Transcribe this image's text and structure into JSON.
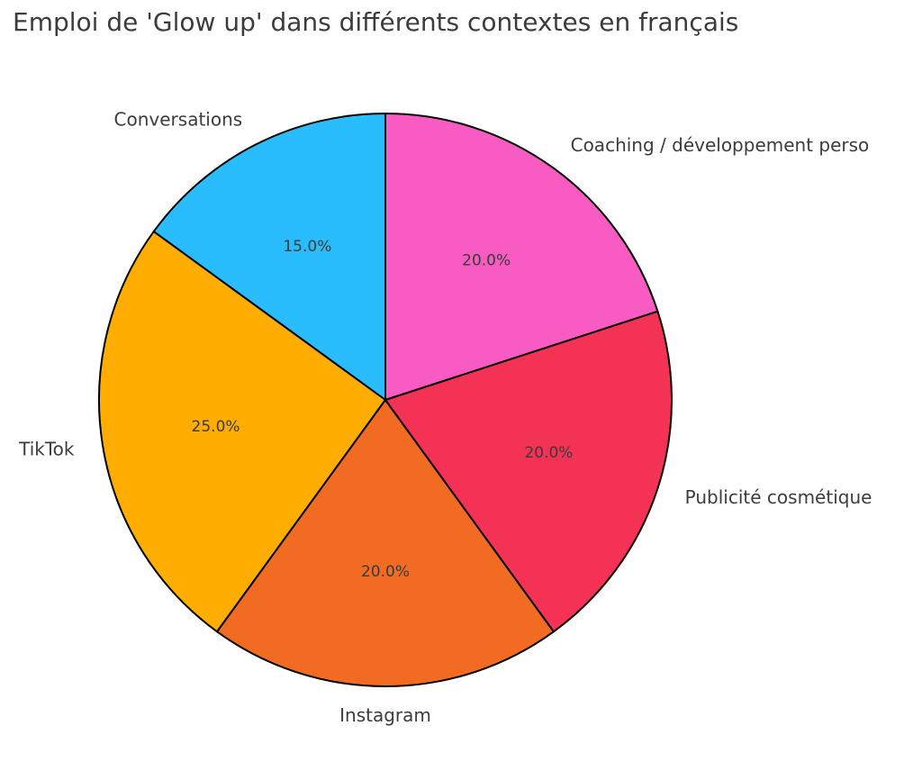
{
  "chart_data": {
    "type": "pie",
    "title": "Emploi de 'Glow up' dans différents contextes en français",
    "categories": [
      "Coaching / développement perso",
      "Conversations",
      "TikTok",
      "Instagram",
      "Publicité cosmétique"
    ],
    "values": [
      20,
      15,
      25,
      20,
      20
    ],
    "value_labels": [
      "20.0%",
      "15.0%",
      "25.0%",
      "20.0%",
      "20.0%"
    ],
    "colors": [
      "#f85cc3",
      "#29bdfd",
      "#ffad00",
      "#f26b22",
      "#f43255"
    ],
    "start_angle_deg": 18,
    "direction": "counterclockwise",
    "legend": "none"
  }
}
